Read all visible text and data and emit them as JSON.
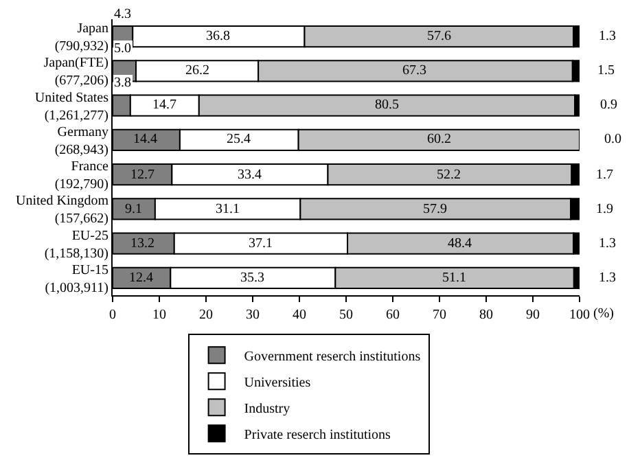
{
  "chart_data": {
    "type": "bar",
    "orientation": "horizontal",
    "stacked": true,
    "legend": "bottom",
    "grid": false,
    "xlabel": "(%)",
    "categories": [
      "Japan\n(790,932)",
      "Japan(FTE)\n(677,206)",
      "United States\n(1,261,277)",
      "Germany\n(268,943)",
      "France\n(192,790)",
      "United Kingdom\n(157,662)",
      "EU-25\n(1,158,130)",
      "EU-15\n(1,003,911)"
    ],
    "series": [
      {
        "name": "Government reserch institutions",
        "color": "#808080",
        "values": [
          4.3,
          5.0,
          3.8,
          14.4,
          12.7,
          9.1,
          13.2,
          12.4
        ],
        "value_labels": [
          "4.3",
          "5.0",
          "3.8",
          "14.4",
          "12.7",
          "9.1",
          "13.2",
          "12.4"
        ]
      },
      {
        "name": "Universities",
        "color": "#ffffff",
        "values": [
          36.8,
          26.2,
          14.7,
          25.4,
          33.4,
          31.1,
          37.1,
          35.3
        ],
        "value_labels": [
          "36.8",
          "26.2",
          "14.7",
          "25.4",
          "33.4",
          "31.1",
          "37.1",
          "35.3"
        ]
      },
      {
        "name": "Industry",
        "color": "#c0c0c0",
        "values": [
          57.6,
          67.3,
          80.5,
          60.2,
          52.2,
          57.9,
          48.4,
          51.1
        ],
        "value_labels": [
          "57.6",
          "67.3",
          "80.5",
          "60.2",
          "52.2",
          "57.9",
          "48.4",
          "51.1"
        ]
      },
      {
        "name": "Private reserch institutions",
        "color": "#000000",
        "values": [
          1.3,
          1.5,
          0.9,
          0.0,
          1.7,
          1.9,
          1.3,
          1.3
        ],
        "value_labels": [
          "1.3",
          "1.5",
          "0.9",
          "0.0",
          "1.7",
          "1.9",
          "1.3",
          "1.3"
        ]
      }
    ],
    "xlim": [
      0,
      100
    ],
    "xticks": [
      0,
      10,
      20,
      30,
      40,
      50,
      60,
      70,
      80,
      90,
      100
    ]
  }
}
